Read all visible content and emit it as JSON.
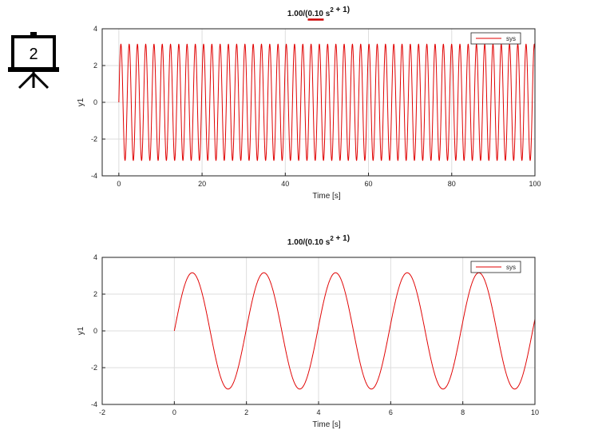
{
  "slide_icon": {
    "name": "presentation-board-icon",
    "number": "2"
  },
  "colors": {
    "series": "#e00000",
    "annotation": "#cc0000",
    "grid": "#dddddd",
    "axis": "#222222"
  },
  "chart_data": [
    {
      "type": "line",
      "title": {
        "main": "1.00/(",
        "underlined": "0.10",
        "after": " s",
        "exp": "2",
        "tail": " + 1)"
      },
      "xlabel": "Time [s]",
      "ylabel": "y1",
      "xlim": [
        -4,
        100
      ],
      "ylim": [
        -4,
        4
      ],
      "xticks": [
        0,
        20,
        40,
        60,
        80,
        100
      ],
      "yticks": [
        -4,
        -2,
        0,
        2,
        4
      ],
      "grid": true,
      "legend": {
        "position": "top-right",
        "entries": [
          "sys"
        ]
      },
      "series": [
        {
          "name": "sys",
          "function": "3.162*sin(3.162*t)",
          "t_range": [
            0,
            100
          ],
          "amplitude": 3.162,
          "omega": 3.162
        }
      ]
    },
    {
      "type": "line",
      "title": {
        "main": "1.00/(",
        "underlined": "",
        "after": "0.10 s",
        "exp": "2",
        "tail": " + 1)"
      },
      "xlabel": "Time [s]",
      "ylabel": "y1",
      "xlim": [
        -2,
        10
      ],
      "ylim": [
        -4,
        4
      ],
      "xticks": [
        -2,
        0,
        2,
        4,
        6,
        8,
        10
      ],
      "yticks": [
        -4,
        -2,
        0,
        2,
        4
      ],
      "grid": true,
      "legend": {
        "position": "top-right",
        "entries": [
          "sys"
        ]
      },
      "series": [
        {
          "name": "sys",
          "function": "3.162*sin(3.162*t)",
          "t_range": [
            0,
            10
          ],
          "amplitude": 3.162,
          "omega": 3.162
        }
      ]
    }
  ]
}
